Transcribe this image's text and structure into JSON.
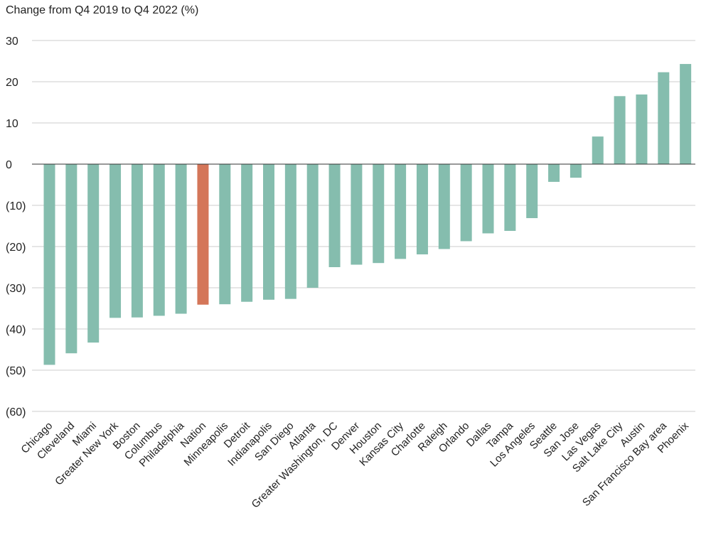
{
  "chart_data": {
    "type": "bar",
    "title": "Change from Q4 2019 to Q4 2022 (%)",
    "xlabel": "",
    "ylabel": "",
    "ylim": [
      -60,
      30
    ],
    "ytick_values": [
      30,
      20,
      10,
      0,
      -10,
      -20,
      -30,
      -40,
      -50,
      -60
    ],
    "ytick_labels": [
      "30",
      "20",
      "10",
      "0",
      "(10)",
      "(20)",
      "(30)",
      "(40)",
      "(50)",
      "(60)"
    ],
    "grid": true,
    "categories": [
      "Chicago",
      "Cleveland",
      "Miami",
      "Greater New York",
      "Boston",
      "Columbus",
      "Philadelphia",
      "Nation",
      "Minneapolis",
      "Detroit",
      "Indianapolis",
      "San Diego",
      "Atlanta",
      "Greater Washington, DC",
      "Denver",
      "Houston",
      "Kansas City",
      "Charlotte",
      "Raleigh",
      "Orlando",
      "Dallas",
      "Tampa",
      "Los Angeles",
      "Seattle",
      "San Jose",
      "Las Vegas",
      "Salt Lake City",
      "Austin",
      "San Francisco Bay area",
      "Phoenix"
    ],
    "values": [
      -48.7,
      -45.9,
      -43.3,
      -37.3,
      -37.2,
      -36.8,
      -36.3,
      -34.1,
      -34.0,
      -33.4,
      -32.9,
      -32.7,
      -30.0,
      -25.0,
      -24.4,
      -24.0,
      -23.0,
      -21.9,
      -20.6,
      -18.7,
      -16.8,
      -16.2,
      -13.1,
      -4.3,
      -3.3,
      6.7,
      16.5,
      16.9,
      22.3,
      24.3
    ],
    "highlight_category": "Nation",
    "colors": {
      "bar": "#85bdae",
      "highlight": "#d47659",
      "grid": "#cccccc",
      "zero": "#333333",
      "text": "#222222"
    }
  }
}
